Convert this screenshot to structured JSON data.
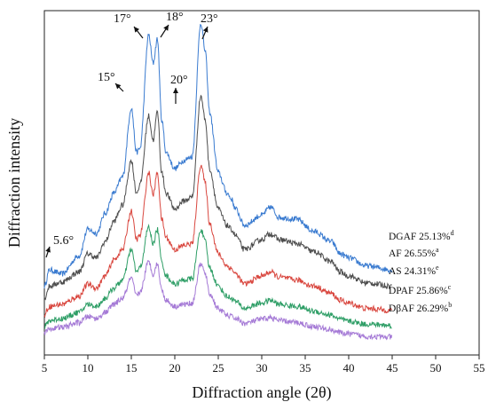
{
  "chart_data": {
    "type": "line",
    "xlabel": "Diffraction angle (2θ)",
    "ylabel": "Diffraction intensity",
    "xlim": [
      5,
      55
    ],
    "x_ticks": [
      5,
      10,
      15,
      20,
      25,
      30,
      35,
      40,
      45,
      50,
      55
    ],
    "grid": false,
    "y_ticks_shown": false,
    "peak_annotations": [
      {
        "label": "5.6°",
        "x": 5.6
      },
      {
        "label": "15°",
        "x": 15
      },
      {
        "label": "17°",
        "x": 17
      },
      {
        "label": "18°",
        "x": 18
      },
      {
        "label": "20°",
        "x": 20
      },
      {
        "label": "23°",
        "x": 23
      }
    ],
    "x": [
      5,
      5.6,
      7,
      9,
      10,
      11,
      12,
      13,
      14,
      15,
      15.6,
      16,
      17,
      17.5,
      18,
      18.5,
      19,
      20,
      21,
      22,
      23,
      23.5,
      24,
      25,
      26,
      26.5,
      27,
      28,
      30,
      31,
      32,
      34,
      36,
      38,
      39,
      40,
      42,
      45
    ],
    "series": [
      {
        "name": "DGAF 25.13%",
        "sup": "d",
        "color": "#3a7bd0",
        "values": [
          330,
          370,
          360,
          405,
          470,
          460,
          510,
          560,
          600,
          770,
          660,
          670,
          950,
          880,
          940,
          740,
          660,
          620,
          640,
          650,
          980,
          910,
          760,
          610,
          560,
          545,
          520,
          480,
          505,
          525,
          500,
          495,
          465,
          440,
          410,
          400,
          380,
          370
        ]
      },
      {
        "name": "AF 26.55%",
        "sup": "a",
        "color": "#4d4d4d",
        "values": [
          300,
          330,
          340,
          365,
          410,
          400,
          440,
          490,
          530,
          640,
          560,
          580,
          750,
          690,
          760,
          610,
          560,
          520,
          540,
          550,
          800,
          740,
          620,
          520,
          480,
          470,
          455,
          420,
          445,
          460,
          445,
          435,
          415,
          390,
          365,
          355,
          338,
          330
        ]
      },
      {
        "name": "AS 24.31%",
        "sup": "e",
        "color": "#d9473f",
        "values": [
          260,
          280,
          285,
          305,
          335,
          325,
          355,
          395,
          420,
          515,
          445,
          455,
          610,
          555,
          610,
          495,
          450,
          420,
          430,
          435,
          630,
          585,
          485,
          410,
          380,
          373,
          360,
          335,
          355,
          365,
          352,
          345,
          330,
          312,
          295,
          288,
          275,
          270
        ]
      },
      {
        "name": "DPAF 25.86%",
        "sup": "c",
        "color": "#2e9e66",
        "values": [
          230,
          245,
          250,
          265,
          285,
          280,
          300,
          325,
          345,
          420,
          365,
          375,
          475,
          435,
          470,
          390,
          355,
          335,
          345,
          348,
          470,
          440,
          375,
          330,
          305,
          300,
          292,
          275,
          288,
          295,
          285,
          280,
          268,
          258,
          248,
          243,
          236,
          233
        ]
      },
      {
        "name": "DβAF 26.29%",
        "sup": "b",
        "color": "#a57ad6",
        "values": [
          215,
          225,
          228,
          240,
          255,
          250,
          265,
          285,
          300,
          350,
          305,
          315,
          390,
          360,
          385,
          320,
          295,
          280,
          285,
          288,
          385,
          360,
          310,
          275,
          258,
          255,
          250,
          238,
          248,
          252,
          245,
          240,
          230,
          222,
          215,
          212,
          206,
          204
        ]
      }
    ]
  }
}
